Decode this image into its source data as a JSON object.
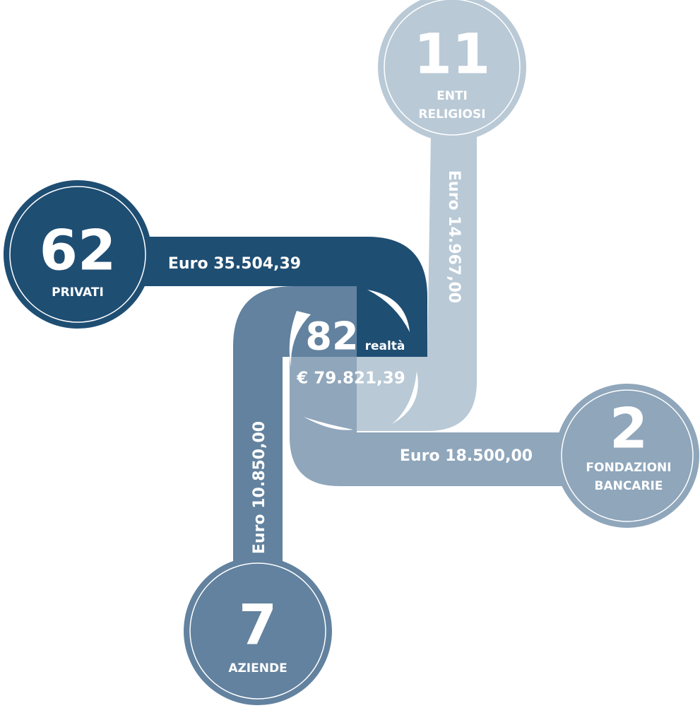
{
  "center": {
    "count": "82",
    "unit": "realtà",
    "amount": "€ 79.821,39"
  },
  "nodes": [
    {
      "count": "11",
      "label": [
        "ENTI",
        "RELIGIOSI"
      ],
      "amount": "Euro 14.967,00"
    },
    {
      "count": "62",
      "label": [
        "PRIVATI"
      ],
      "amount": "Euro 35.504,39"
    },
    {
      "count": "2",
      "label": [
        "FONDAZIONI",
        "BANCARIE"
      ],
      "amount": "Euro 18.500,00"
    },
    {
      "count": "7",
      "label": [
        "AZIENDE"
      ],
      "amount": "Euro 10.850,00"
    }
  ]
}
